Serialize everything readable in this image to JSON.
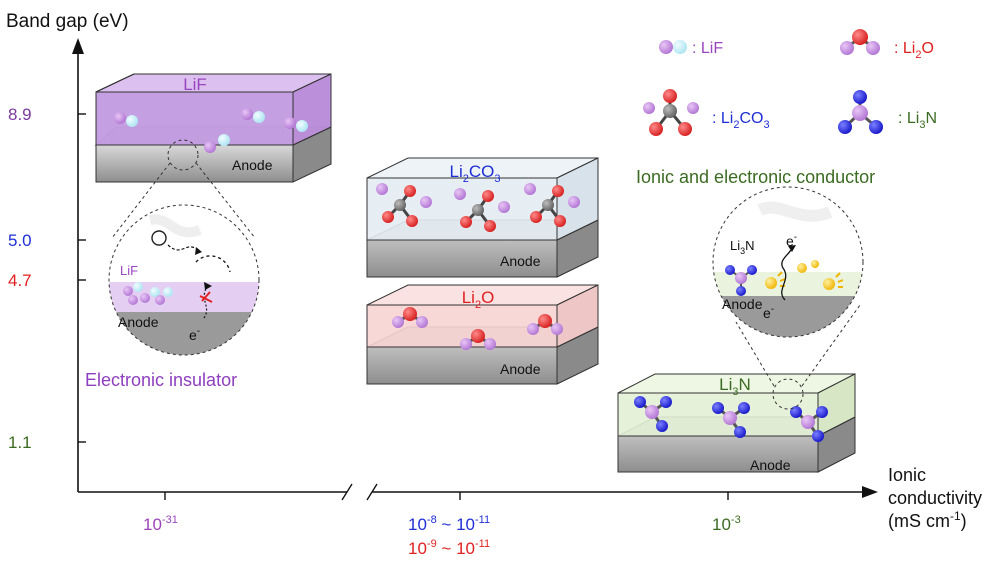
{
  "axes": {
    "y_label": "Band gap (eV)",
    "x_label_line1": "Ionic",
    "x_label_line2": "conductivity",
    "x_label_line3_a": "(mS cm",
    "x_label_line3_sup": "-1",
    "x_label_line3_b": ")"
  },
  "y_ticks": [
    {
      "label": "8.9",
      "color": "#7b3a9e"
    },
    {
      "label": "5.0",
      "color": "#1f2fd6"
    },
    {
      "label": "4.7",
      "color": "#e02020"
    },
    {
      "label": "1.1",
      "color": "#3b6b22"
    }
  ],
  "x_ticks": {
    "lif": {
      "base": "10",
      "exp": "-31",
      "color": "#9b45b8"
    },
    "mid_blue": {
      "a": "10",
      "a_exp": "-8",
      "sep": " ~ ",
      "b": "10",
      "b_exp": "-11",
      "color": "#1f2fd6"
    },
    "mid_red": {
      "a": "10",
      "a_exp": "-9",
      "sep": " ~ ",
      "b": "10",
      "b_exp": "-11",
      "color": "#e02020"
    },
    "li3n": {
      "base": "10",
      "exp": "-3",
      "color": "#3b6b22"
    }
  },
  "legend": {
    "lif": ": LiF",
    "li2o_a": ": Li",
    "li2o_sub": "2",
    "li2o_b": "O",
    "li2co3_a": ": Li",
    "li2co3_sub": "2",
    "li2co3_b": "CO",
    "li2co3_sub2": "3",
    "li3n_a": ": Li",
    "li3n_sub": "3",
    "li3n_b": "N"
  },
  "layers": {
    "lif": {
      "name": "LiF",
      "color": "#9a46c0"
    },
    "li2co3": {
      "name_a": "Li",
      "sub": "2",
      "name_b": "CO",
      "sub2": "3",
      "color": "#1f2fd6"
    },
    "li2o": {
      "name_a": "Li",
      "sub": "2",
      "name_b": "O",
      "color": "#e02020"
    },
    "li3n": {
      "name_a": "Li",
      "sub": "3",
      "name_b": "N",
      "color": "#3b6b22"
    },
    "anode": "Anode"
  },
  "insets": {
    "lif_label": "LiF",
    "anode": "Anode",
    "electron": "e",
    "electron_sup": "-",
    "li3n_label_a": "Li",
    "li3n_label_sub": "3",
    "li3n_label_b": "N"
  },
  "captions": {
    "insulator": "Electronic insulator",
    "conductor": "Ionic and electronic conductor"
  }
}
